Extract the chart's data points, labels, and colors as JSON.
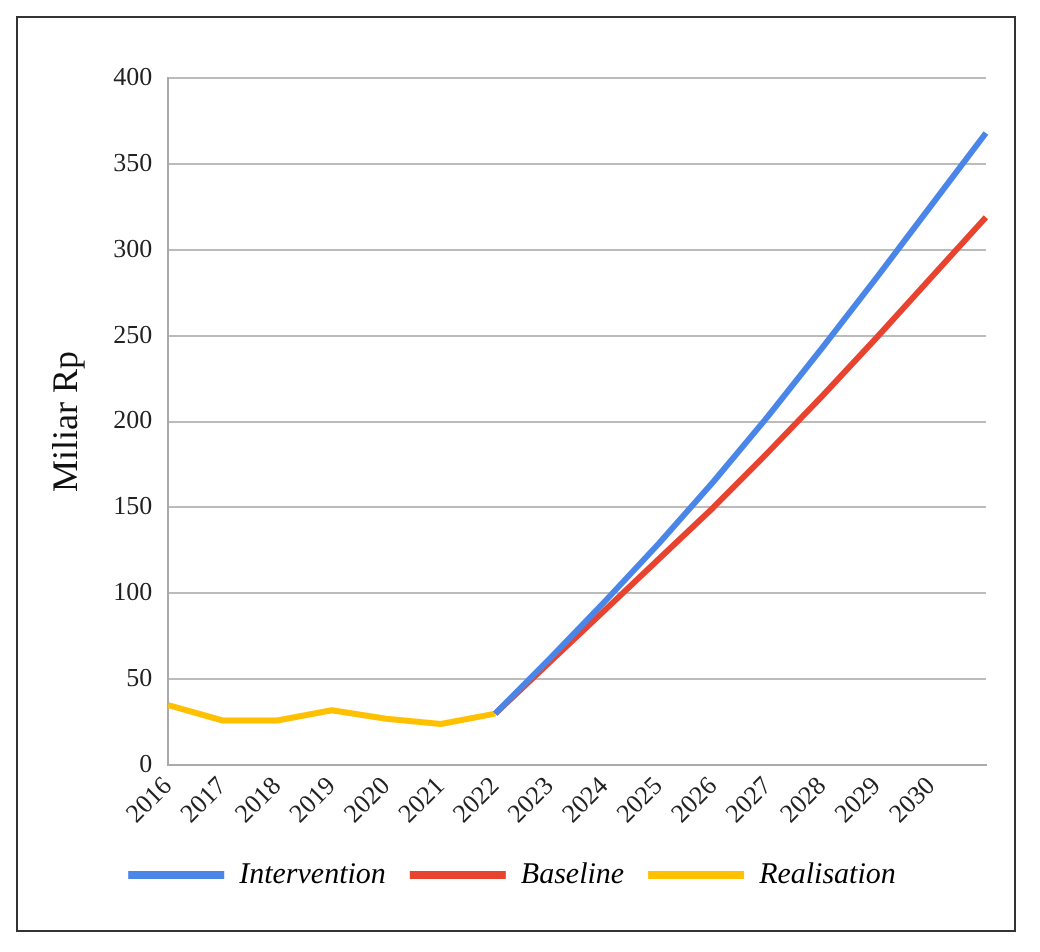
{
  "chart_data": {
    "type": "line",
    "ylabel": "Miliar Rp",
    "categories": [
      "2016",
      "2017",
      "2018",
      "2019",
      "2020",
      "2021",
      "2022",
      "2023",
      "2024",
      "2025",
      "2026",
      "2027",
      "2028",
      "2029",
      "2030",
      null
    ],
    "series": [
      {
        "name": "Intervention",
        "color": "#4a86e8",
        "values": [
          null,
          null,
          null,
          null,
          null,
          null,
          30,
          62,
          95,
          129,
          165,
          203,
          243,
          284,
          326,
          368
        ]
      },
      {
        "name": "Baseline",
        "color": "#e8432f",
        "values": [
          null,
          null,
          null,
          null,
          null,
          null,
          30,
          60,
          90,
          120,
          150,
          182,
          215,
          249,
          284,
          319
        ]
      },
      {
        "name": "Realisation",
        "color": "#ffc000",
        "values": [
          35,
          26,
          26,
          32,
          27,
          24,
          30,
          null,
          null,
          null,
          null,
          null,
          null,
          null,
          null,
          null
        ]
      }
    ],
    "ylim": [
      0,
      400
    ],
    "yticks": [
      0,
      50,
      100,
      150,
      200,
      250,
      300,
      350,
      400
    ],
    "grid": "y",
    "legend": "bottom",
    "marker": "none",
    "line_style": "solid"
  }
}
